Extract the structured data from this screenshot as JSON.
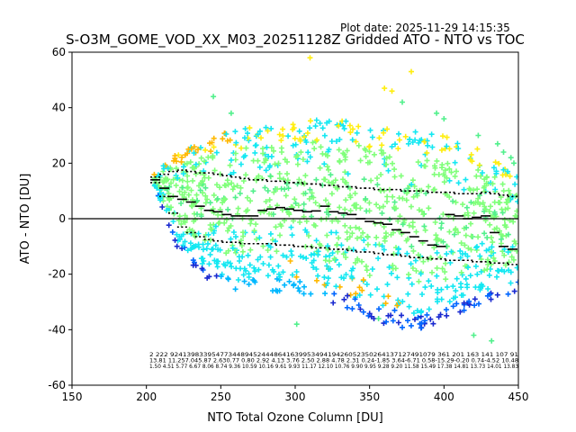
{
  "plot_date": "Plot date: 2025-11-29 14:15:35",
  "chart_data": {
    "type": "scatter",
    "title": "S-O3M_GOME_VOD_XX_M03_20251128Z Gridded ATO - NTO vs TOC",
    "xlabel": "NTO Total Ozone Column [DU]",
    "ylabel": "ATO - NTO [DU]",
    "xlim": [
      150,
      450
    ],
    "ylim": [
      -60,
      60
    ],
    "xticks": [
      150,
      200,
      250,
      300,
      350,
      400,
      450
    ],
    "yticks": [
      -60,
      -40,
      -20,
      0,
      20,
      40,
      60
    ],
    "grid": false,
    "zero_line": 0,
    "colors": {
      "band_lime": "#80ff7a",
      "band_cyan": "#14e8f2",
      "band_orange": "#ffb800",
      "band_yellow": "#ffee10",
      "band_blue": "#0066ff",
      "band_navy": "#1a2ad0",
      "band_mint": "#52f08c",
      "band_sky": "#00b8ff",
      "median": "#000000"
    },
    "cloud_envelope": {
      "x": [
        205,
        220,
        240,
        260,
        280,
        300,
        320,
        340,
        360,
        380,
        400,
        420,
        440,
        450
      ],
      "upper": [
        16,
        24,
        29,
        32,
        34,
        35,
        36,
        35,
        33,
        32,
        30,
        26,
        20,
        16
      ],
      "lower": [
        12,
        -10,
        -22,
        -27,
        -26,
        -27,
        -30,
        -34,
        -38,
        -40,
        -38,
        -32,
        -28,
        -26
      ]
    },
    "median_bins": {
      "x": [
        206,
        212,
        218,
        224,
        230,
        236,
        242,
        248,
        254,
        260,
        266,
        272,
        278,
        284,
        290,
        296,
        302,
        308,
        314,
        320,
        326,
        332,
        338,
        344,
        350,
        356,
        362,
        368,
        374,
        380,
        386,
        392,
        398,
        404,
        410,
        416,
        422,
        428,
        434,
        440,
        446
      ],
      "median": [
        14.0,
        11.0,
        8.0,
        7.0,
        6.0,
        4.5,
        3.0,
        2.5,
        1.5,
        1.0,
        1.0,
        1.0,
        3.0,
        3.5,
        4.0,
        3.5,
        3.0,
        2.5,
        2.8,
        4.5,
        2.5,
        2.0,
        1.5,
        0.0,
        -1.0,
        -1.5,
        -2.0,
        -4.0,
        -5.0,
        -6.5,
        -8.0,
        -9.5,
        -10.0,
        1.5,
        1.0,
        0.0,
        0.5,
        1.0,
        -5.0,
        -10.0,
        -11.0
      ],
      "p84": [
        15.0,
        16.0,
        17.0,
        17.5,
        17.0,
        16.5,
        16.5,
        16.0,
        15.5,
        15.0,
        14.5,
        14.0,
        14.0,
        13.5,
        13.5,
        13.0,
        13.0,
        12.5,
        12.5,
        12.0,
        12.0,
        11.5,
        11.5,
        11.0,
        11.0,
        10.5,
        10.5,
        10.5,
        10.0,
        10.0,
        10.0,
        9.5,
        9.5,
        9.5,
        9.0,
        9.0,
        9.0,
        9.5,
        9.0,
        8.5,
        8.0
      ],
      "p16": [
        13.0,
        8.0,
        2.0,
        -3.0,
        -5.0,
        -6.5,
        -7.5,
        -8.0,
        -8.5,
        -8.5,
        -9.0,
        -9.0,
        -9.0,
        -9.0,
        -9.5,
        -9.5,
        -10.0,
        -10.0,
        -10.5,
        -10.5,
        -11.0,
        -11.0,
        -11.5,
        -12.0,
        -12.0,
        -12.5,
        -13.0,
        -13.0,
        -13.5,
        -14.0,
        -14.0,
        -14.5,
        -14.5,
        -15.0,
        -15.0,
        -15.0,
        -15.5,
        -15.5,
        -16.0,
        -16.0,
        -16.5
      ]
    },
    "bin_stats_rows": [
      "2   222  9241398339547734489452444864163995349419426052350264137127491079 361 201  163  141  107  91",
      "13.81 11.257.045.87 2.630.77 0.80 2.92 4.13 3.76 2.50 2.88 4.78 2.31 0.24-1.85 3.64-6.71 0.58-15.29-0.20 0.74-4.52 10.48",
      "1.50 4.51 5.77 6.67 8.06 8.74 9.36 10.59 10.16 9.61 9.93 11.17 12.10 10.76 9.90 9.95 9.28 9.20 11.58 15.49 17.38 14.81 13.73 14.01 13.83"
    ],
    "bin_stats_row_colors": [
      "#000000",
      "#000000",
      "#000000"
    ],
    "outliers": {
      "x": [
        310,
        378,
        365,
        372,
        360,
        245,
        257,
        395,
        400,
        423,
        436,
        440,
        445,
        447,
        420,
        432,
        301,
        356
      ],
      "y": [
        58,
        53,
        46,
        42,
        47,
        44,
        38,
        38,
        36,
        30,
        27,
        24,
        22,
        20,
        -42,
        -44,
        -38,
        -36
      ]
    }
  }
}
